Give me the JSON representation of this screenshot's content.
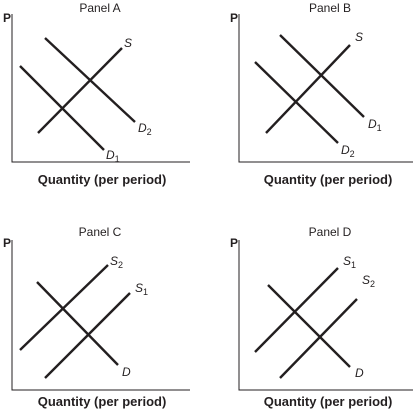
{
  "panels": [
    {
      "title": "Panel A",
      "y_label": "P",
      "x_label": "Quantity (per period)",
      "curves": [
        {
          "name": "S"
        },
        {
          "name": "D",
          "sub": "2"
        },
        {
          "name": "D",
          "sub": "1"
        }
      ]
    },
    {
      "title": "Panel B",
      "y_label": "P",
      "x_label": "Quantity (per period)",
      "curves": [
        {
          "name": "S"
        },
        {
          "name": "D",
          "sub": "1"
        },
        {
          "name": "D",
          "sub": "2"
        }
      ]
    },
    {
      "title": "Panel C",
      "y_label": "P",
      "x_label": "Quantity (per period)",
      "curves": [
        {
          "name": "S",
          "sub": "2"
        },
        {
          "name": "S",
          "sub": "1"
        },
        {
          "name": "D"
        }
      ]
    },
    {
      "title": "Panel D",
      "y_label": "P",
      "x_label": "Quantity (per period)",
      "curves": [
        {
          "name": "S",
          "sub": "1"
        },
        {
          "name": "S",
          "sub": "2"
        },
        {
          "name": "D"
        }
      ]
    }
  ]
}
